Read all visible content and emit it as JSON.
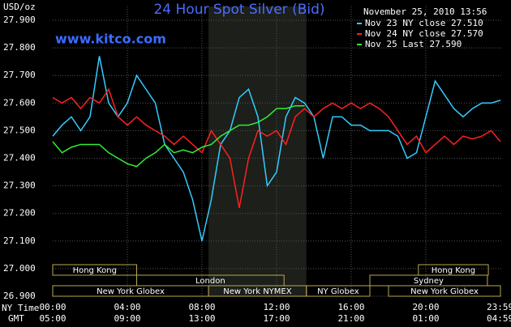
{
  "chart_data": {
    "type": "line",
    "title": "24 Hour Spot Silver (Bid)",
    "y_unit": "USD/oz",
    "watermark": "www.kitco.com",
    "timestamp": "November 25, 2010 13:56",
    "x": [
      0,
      0.5,
      1,
      1.5,
      2,
      2.5,
      3,
      3.5,
      4,
      4.5,
      5,
      5.5,
      6,
      6.5,
      7,
      7.5,
      8,
      8.5,
      9,
      9.5,
      10,
      10.5,
      11,
      11.5,
      12,
      12.5,
      13,
      13.5,
      14,
      14.5,
      15,
      15.5,
      16,
      16.5,
      17,
      17.5,
      18,
      18.5,
      19,
      19.5,
      20,
      20.5,
      21,
      21.5,
      22,
      22.5,
      23,
      23.5,
      24
    ],
    "series": [
      {
        "name": "Nov 23 NY close 27.510",
        "color": "#33ccff",
        "values": [
          27.48,
          27.52,
          27.55,
          27.5,
          27.55,
          27.77,
          27.6,
          27.55,
          27.6,
          27.7,
          27.65,
          27.6,
          27.45,
          27.4,
          27.35,
          27.25,
          27.1,
          27.25,
          27.45,
          27.5,
          27.62,
          27.65,
          27.55,
          27.3,
          27.35,
          27.55,
          27.62,
          27.6,
          27.55,
          27.4,
          27.55,
          27.55,
          27.52,
          27.52,
          27.5,
          27.5,
          27.5,
          27.48,
          27.4,
          27.42,
          27.55,
          27.68,
          27.63,
          27.58,
          27.55,
          27.58,
          27.6,
          27.6,
          27.61
        ]
      },
      {
        "name": "Nov 24 NY close 27.570",
        "color": "#ff2020",
        "values": [
          27.62,
          27.6,
          27.62,
          27.58,
          27.62,
          27.6,
          27.65,
          27.55,
          27.52,
          27.55,
          27.52,
          27.5,
          27.48,
          27.45,
          27.48,
          27.45,
          27.42,
          27.5,
          27.45,
          27.4,
          27.22,
          27.4,
          27.5,
          27.48,
          27.5,
          27.45,
          27.55,
          27.58,
          27.55,
          27.58,
          27.6,
          27.58,
          27.6,
          27.58,
          27.6,
          27.58,
          27.55,
          27.5,
          27.45,
          27.48,
          27.42,
          27.45,
          27.48,
          27.45,
          27.48,
          27.47,
          27.48,
          27.5,
          27.46
        ]
      },
      {
        "name": "Nov 25 Last 27.590",
        "color": "#33ee33",
        "values": [
          27.46,
          27.42,
          27.44,
          27.45,
          27.45,
          27.45,
          27.42,
          27.4,
          27.38,
          27.37,
          27.4,
          27.42,
          27.45,
          27.42,
          27.43,
          27.42,
          27.44,
          27.45,
          27.48,
          27.5,
          27.52,
          27.52,
          27.53,
          27.55,
          27.58,
          27.58,
          27.59,
          27.59,
          null,
          null,
          null,
          null,
          null,
          null,
          null,
          null,
          null,
          null,
          null,
          null,
          null,
          null,
          null,
          null,
          null,
          null,
          null,
          null,
          null
        ]
      }
    ],
    "xlim": [
      0,
      24
    ],
    "xticks": [
      {
        "value": 0,
        "label": "00:00"
      },
      {
        "value": 4,
        "label": "04:00"
      },
      {
        "value": 8,
        "label": "08:00"
      },
      {
        "value": 12,
        "label": "12:00"
      },
      {
        "value": 16,
        "label": "16:00"
      },
      {
        "value": 20,
        "label": "20:00"
      },
      {
        "value": 23.98,
        "label": "23:59"
      }
    ],
    "gmt_labels": [
      "05:00",
      "09:00",
      "13:00",
      "17:00",
      "21:00",
      "01:00",
      "04:59"
    ],
    "x_row_labels": [
      "NY Time",
      "GMT"
    ],
    "ylim": [
      26.9,
      27.9
    ],
    "yticks": [
      {
        "value": 26.9,
        "label": "26.900"
      },
      {
        "value": 27.0,
        "label": "27.000"
      },
      {
        "value": 27.1,
        "label": "27.100"
      },
      {
        "value": 27.2,
        "label": "27.200"
      },
      {
        "value": 27.3,
        "label": "27.300"
      },
      {
        "value": 27.4,
        "label": "27.400"
      },
      {
        "value": 27.5,
        "label": "27.500"
      },
      {
        "value": 27.6,
        "label": "27.600"
      },
      {
        "value": 27.7,
        "label": "27.700"
      },
      {
        "value": 27.8,
        "label": "27.800"
      },
      {
        "value": 27.9,
        "label": "27.900"
      }
    ],
    "grid": true,
    "sessions": [
      [
        {
          "name": "Hong Kong",
          "start": 0,
          "end": 4.5
        },
        {
          "name": "Hong Kong",
          "start": 19.6,
          "end": 23.35
        }
      ],
      [
        {
          "name": "London",
          "start": 4.5,
          "end": 12.4
        },
        {
          "name": "Sydney",
          "start": 17,
          "end": 23.3
        }
      ],
      [
        {
          "name": "New York Globex",
          "start": 0,
          "end": 8.35
        },
        {
          "name": "New York NYMEX",
          "start": 8.35,
          "end": 13.6
        },
        {
          "name": "NY Globex",
          "start": 13.6,
          "end": 17
        },
        {
          "name": "New York Globex",
          "start": 18,
          "end": 24
        }
      ]
    ]
  }
}
